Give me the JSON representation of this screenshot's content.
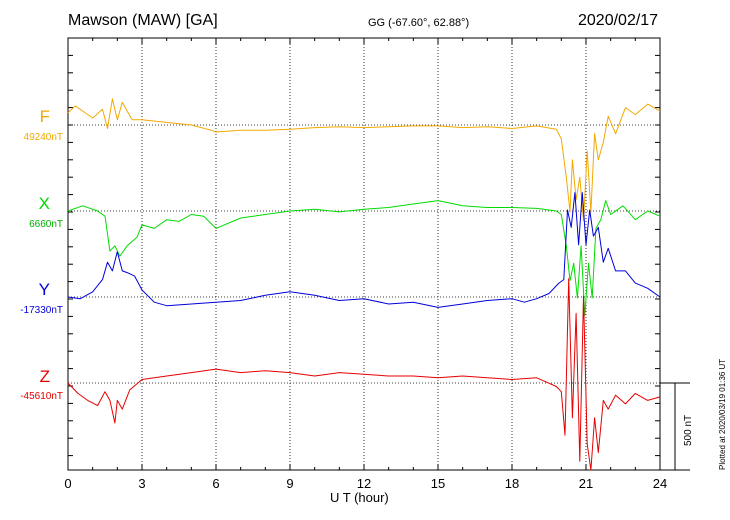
{
  "header": {
    "station": "Mawson (MAW)  [GA]",
    "coords": "GG (-67.60°,  62.88°)",
    "date": "2020/02/17"
  },
  "footer": {
    "plotted": "Plotted at 2020/03/19 01:36 UT",
    "scale_label": "500 nT"
  },
  "chart_data": {
    "type": "line",
    "xlabel": "U T (hour)",
    "xlim": [
      0,
      24
    ],
    "xticks": [
      0,
      3,
      6,
      9,
      12,
      15,
      18,
      21,
      24
    ],
    "grid": true,
    "scale_bar_nT": 500,
    "series": [
      {
        "name": "F",
        "baseline": "49240nT",
        "color": "#f2a900",
        "x": [
          0,
          0.3,
          0.6,
          1.0,
          1.4,
          1.6,
          1.8,
          2.0,
          2.2,
          2.6,
          3.0,
          4.0,
          5.0,
          5.8,
          6.0,
          7.0,
          8.0,
          9.0,
          10.0,
          11.0,
          12.0,
          13.0,
          14.0,
          15.0,
          16.0,
          17.0,
          18.0,
          19.0,
          19.8,
          20.0,
          20.2,
          20.35,
          20.45,
          20.6,
          20.75,
          20.9,
          21.05,
          21.2,
          21.35,
          21.5,
          21.7,
          21.9,
          22.2,
          22.6,
          23.0,
          23.5,
          24.0
        ],
        "values": [
          70,
          110,
          80,
          40,
          90,
          -20,
          150,
          30,
          130,
          30,
          30,
          15,
          0,
          -30,
          -40,
          -30,
          -30,
          -25,
          -15,
          -10,
          -15,
          -10,
          -5,
          -5,
          -15,
          -10,
          -20,
          -5,
          -25,
          -80,
          -300,
          -500,
          -200,
          -430,
          -300,
          -550,
          -150,
          -500,
          -50,
          -200,
          -100,
          50,
          -50,
          100,
          60,
          120,
          80
        ]
      },
      {
        "name": "X",
        "baseline": "6660nT",
        "color": "#00dc00",
        "x": [
          0,
          0.6,
          1.2,
          1.5,
          1.7,
          1.9,
          2.1,
          2.4,
          2.8,
          3.0,
          3.5,
          4.0,
          4.5,
          5.0,
          5.5,
          6.0,
          7.0,
          8.0,
          9.0,
          10.0,
          11.0,
          12.0,
          13.0,
          14.0,
          15.0,
          16.0,
          17.0,
          18.0,
          19.0,
          19.8,
          20.0,
          20.2,
          20.35,
          20.5,
          20.65,
          20.8,
          20.95,
          21.1,
          21.25,
          21.4,
          21.6,
          21.8,
          22.0,
          22.5,
          23.0,
          23.5,
          24.0
        ],
        "values": [
          0,
          30,
          0,
          -30,
          -230,
          -200,
          -260,
          -200,
          -150,
          -80,
          -100,
          -50,
          -60,
          -20,
          -30,
          -100,
          -40,
          -20,
          0,
          10,
          -5,
          10,
          20,
          40,
          60,
          30,
          20,
          20,
          15,
          0,
          -20,
          -200,
          -400,
          -300,
          -500,
          -200,
          -600,
          -300,
          -500,
          -100,
          -50,
          60,
          -20,
          30,
          -50,
          0,
          -30
        ]
      },
      {
        "name": "Y",
        "baseline": "-17330nT",
        "color": "#0000dc",
        "x": [
          0,
          0.5,
          1.0,
          1.4,
          1.6,
          1.8,
          2.0,
          2.2,
          2.4,
          2.7,
          3.0,
          3.5,
          4.0,
          5.0,
          6.0,
          7.0,
          8.0,
          9.0,
          10.0,
          11.0,
          12.0,
          13.0,
          14.0,
          15.0,
          16.0,
          17.0,
          18.0,
          18.5,
          19.0,
          19.5,
          19.9,
          20.1,
          20.25,
          20.4,
          20.55,
          20.7,
          20.85,
          21.0,
          21.15,
          21.3,
          21.5,
          21.7,
          21.9,
          22.2,
          22.6,
          23.0,
          23.5,
          24.0
        ],
        "values": [
          0,
          -10,
          30,
          100,
          200,
          150,
          260,
          150,
          140,
          120,
          40,
          -30,
          -50,
          -40,
          -30,
          -20,
          10,
          30,
          10,
          -20,
          -10,
          -40,
          -30,
          -60,
          -40,
          -20,
          -10,
          -30,
          -10,
          20,
          80,
          100,
          500,
          400,
          600,
          300,
          600,
          300,
          500,
          350,
          400,
          200,
          280,
          150,
          150,
          80,
          50,
          0
        ]
      },
      {
        "name": "Z",
        "baseline": "-45610nT",
        "color": "#e60000",
        "x": [
          0,
          0.4,
          0.8,
          1.2,
          1.5,
          1.7,
          1.9,
          2.0,
          2.2,
          2.5,
          3.0,
          4.0,
          5.0,
          6.0,
          7.0,
          8.0,
          9.0,
          10.0,
          11.0,
          12.0,
          13.0,
          14.0,
          15.0,
          16.0,
          17.0,
          18.0,
          19.0,
          19.8,
          20.0,
          20.15,
          20.3,
          20.45,
          20.6,
          20.75,
          20.9,
          21.05,
          21.2,
          21.35,
          21.5,
          21.7,
          21.9,
          22.2,
          22.6,
          23.0,
          23.5,
          24.0
        ],
        "values": [
          0,
          -60,
          -100,
          -130,
          -50,
          -100,
          -230,
          -100,
          -150,
          -40,
          20,
          40,
          60,
          80,
          60,
          70,
          60,
          40,
          60,
          50,
          40,
          40,
          30,
          40,
          30,
          20,
          30,
          -20,
          -50,
          -300,
          600,
          -200,
          400,
          -450,
          500,
          -350,
          -600,
          -200,
          -400,
          -100,
          -150,
          -70,
          -120,
          -60,
          -100,
          -80
        ]
      }
    ]
  }
}
